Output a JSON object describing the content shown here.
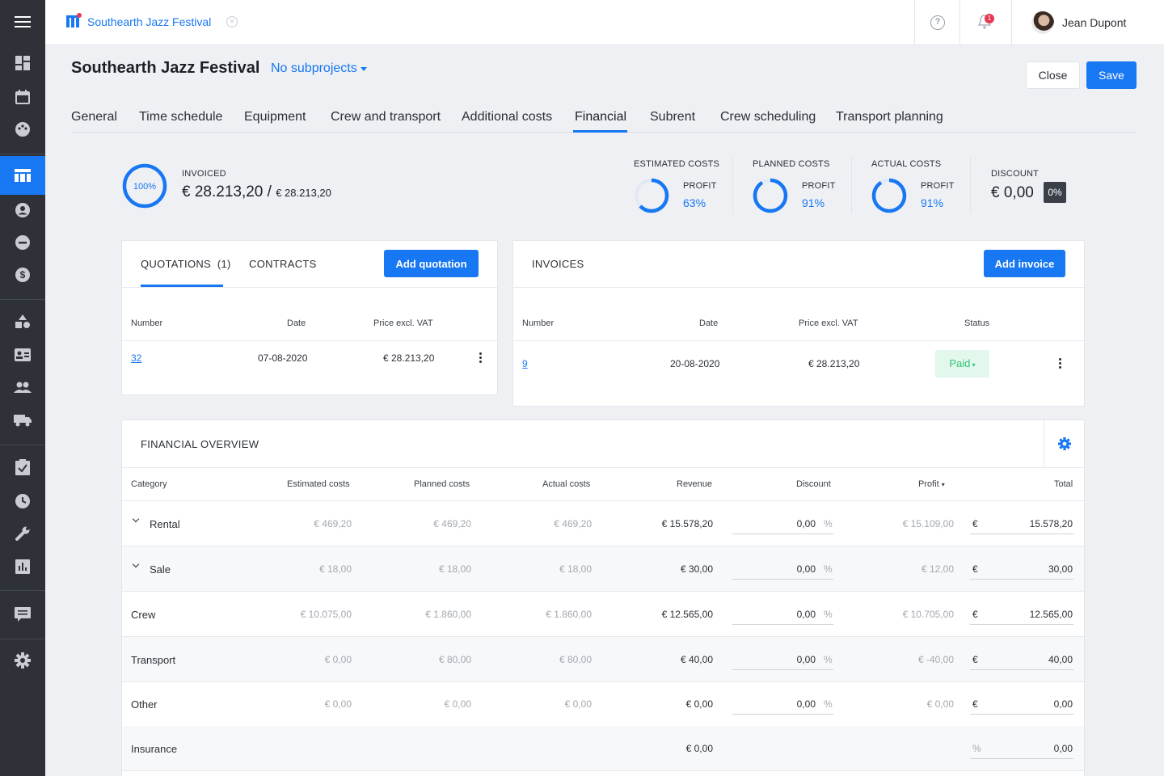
{
  "app": {
    "project_name": "Southearth Jazz Festival",
    "user_name": "Jean Dupont",
    "notification_count": "1",
    "help_glyph": "?"
  },
  "sidebar": {
    "icons": [
      "menu-icon",
      "dashboard-icon",
      "calendar-icon",
      "palette-icon",
      "projects-icon",
      "contacts-icon",
      "speedometer-icon",
      "dollar-icon",
      "inventory-icon",
      "id-card-icon",
      "crew-icon",
      "truck-icon",
      "checklist-icon",
      "clock-icon",
      "wrench-icon",
      "reports-icon",
      "messages-icon",
      "settings-icon"
    ],
    "active": "projects-icon"
  },
  "header": {
    "title": "Southearth Jazz Festival",
    "subprojects": "No subprojects",
    "close_label": "Close",
    "save_label": "Save"
  },
  "tabs": [
    "General",
    "Time schedule",
    "Equipment",
    "Crew and transport",
    "Additional costs",
    "Financial",
    "Subrent",
    "Crew scheduling",
    "Transport planning"
  ],
  "active_tab": "Financial",
  "summary": {
    "invoiced_label": "INVOICED",
    "invoiced_pct": "100%",
    "invoiced_amount": "€ 28.213,20",
    "invoiced_sep": "/",
    "invoiced_total": "€ 28.213,20",
    "estimated": {
      "label": "ESTIMATED COSTS",
      "profit_label": "PROFIT",
      "profit_pct": "63%",
      "ratio": 0.63
    },
    "planned": {
      "label": "PLANNED COSTS",
      "profit_label": "PROFIT",
      "profit_pct": "91%",
      "ratio": 0.91
    },
    "actual": {
      "label": "ACTUAL COSTS",
      "profit_label": "PROFIT",
      "profit_pct": "91%",
      "ratio": 0.91
    },
    "discount": {
      "label": "DISCOUNT",
      "value": "€ 0,00",
      "pct": "0%"
    }
  },
  "quotations": {
    "tab_label": "QUOTATIONS",
    "tab_count": "(1)",
    "contracts_label": "CONTRACTS",
    "add_label": "Add quotation",
    "columns": [
      "Number",
      "Date",
      "Price excl. VAT"
    ],
    "rows": [
      {
        "number": "32",
        "date": "07-08-2020",
        "price": "€ 28.213,20"
      }
    ]
  },
  "invoices": {
    "title": "INVOICES",
    "add_label": "Add invoice",
    "columns": [
      "Number",
      "Date",
      "Price excl. VAT",
      "Status"
    ],
    "rows": [
      {
        "number": "9",
        "date": "20-08-2020",
        "price": "€ 28.213,20",
        "status": "Paid"
      }
    ]
  },
  "overview": {
    "title": "FINANCIAL OVERVIEW",
    "columns": [
      "Category",
      "Estimated costs",
      "Planned costs",
      "Actual costs",
      "Revenue",
      "Discount",
      "Profit",
      "Total"
    ],
    "pct_symbol": "%",
    "currency_symbol": "€",
    "rows": [
      {
        "category": "Rental",
        "estimated": "€ 469,20",
        "planned": "€ 469,20",
        "actual": "€ 469,20",
        "revenue": "€ 15.578,20",
        "discount": "0,00",
        "profit": "€ 15.109,00",
        "total": "15.578,20"
      },
      {
        "category": "Sale",
        "estimated": "€ 18,00",
        "planned": "€ 18,00",
        "actual": "€ 18,00",
        "revenue": "€ 30,00",
        "discount": "0,00",
        "profit": "€ 12,00",
        "total": "30,00"
      },
      {
        "category": "Crew",
        "estimated": "€ 10.075,00",
        "planned": "€ 1.860,00",
        "actual": "€ 1.860,00",
        "revenue": "€ 12.565,00",
        "discount": "0,00",
        "profit": "€ 10.705,00",
        "total": "12.565,00"
      },
      {
        "category": "Transport",
        "estimated": "€ 0,00",
        "planned": "€ 80,00",
        "actual": "€ 80,00",
        "revenue": "€ 40,00",
        "discount": "0,00",
        "profit": "€ -40,00",
        "total": "40,00"
      },
      {
        "category": "Other",
        "estimated": "€ 0,00",
        "planned": "€ 0,00",
        "actual": "€ 0,00",
        "revenue": "€ 0,00",
        "discount": "0,00",
        "profit": "€ 0,00",
        "total": "0,00"
      },
      {
        "category": "Insurance",
        "revenue": "€ 0,00",
        "total": "0,00"
      }
    ]
  },
  "colors": {
    "accent": "#1877f2",
    "sidebar": "#2e3138",
    "paid_bg": "#e3f7ec",
    "paid_text": "#2ec479"
  }
}
